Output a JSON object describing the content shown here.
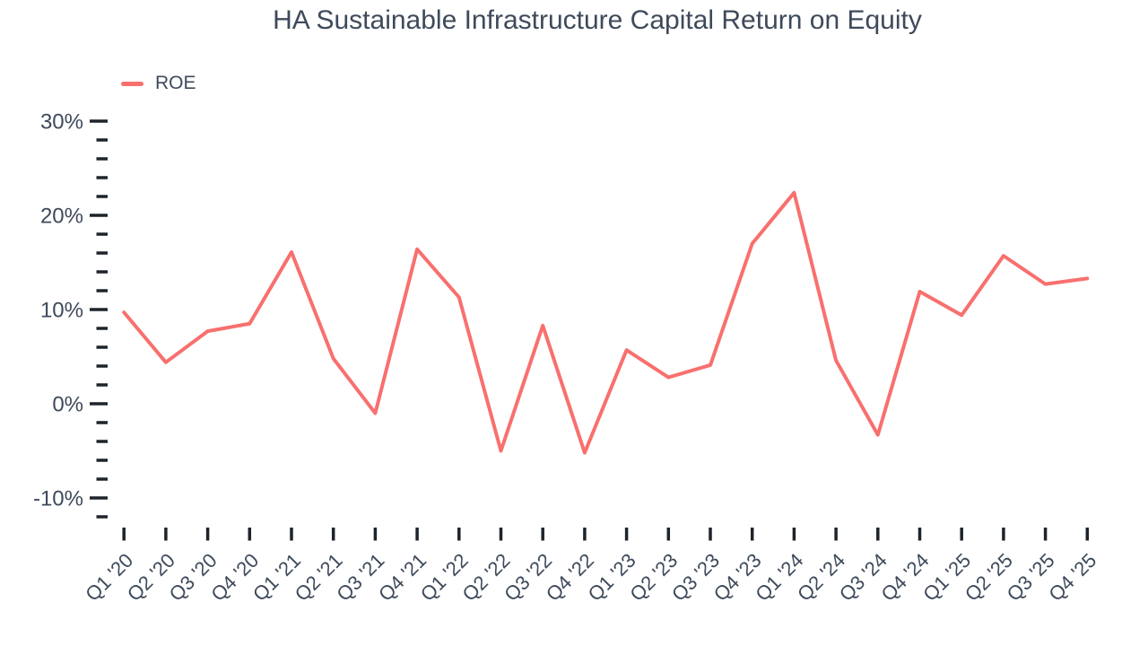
{
  "chart_data": {
    "type": "line",
    "title": "HA Sustainable Infrastructure Capital Return on Equity",
    "legend_position": "top-left",
    "grid": false,
    "categories": [
      "Q1 '20",
      "Q2 '20",
      "Q3 '20",
      "Q4 '20",
      "Q1 '21",
      "Q2 '21",
      "Q3 '21",
      "Q4 '21",
      "Q1 '22",
      "Q2 '22",
      "Q3 '22",
      "Q4 '22",
      "Q1 '23",
      "Q2 '23",
      "Q3 '23",
      "Q4 '23",
      "Q1 '24",
      "Q2 '24",
      "Q3 '24",
      "Q4 '24",
      "Q1 '25",
      "Q2 '25",
      "Q3 '25",
      "Q4 '25"
    ],
    "series": [
      {
        "name": "ROE",
        "color": "#F8706E",
        "values": [
          9.7,
          4.4,
          7.7,
          8.5,
          16.1,
          4.8,
          -1.0,
          16.4,
          11.3,
          -5.0,
          8.3,
          -5.2,
          5.7,
          2.8,
          4.1,
          17.0,
          22.4,
          4.6,
          -3.3,
          11.9,
          9.4,
          15.7,
          12.7,
          13.3
        ]
      }
    ],
    "xlabel": "",
    "ylabel": "",
    "y_axis": {
      "unit": "%",
      "min": -12,
      "max": 30,
      "major_step": 10,
      "minor_step": 2,
      "major_tick_labels": [
        "30%",
        "20%",
        "10%",
        "0%",
        "-10%"
      ]
    },
    "colors": {
      "line": "#F8706E",
      "text": "#3E4A5B",
      "tick": "#1E242B",
      "background": "#FFFFFF"
    }
  }
}
